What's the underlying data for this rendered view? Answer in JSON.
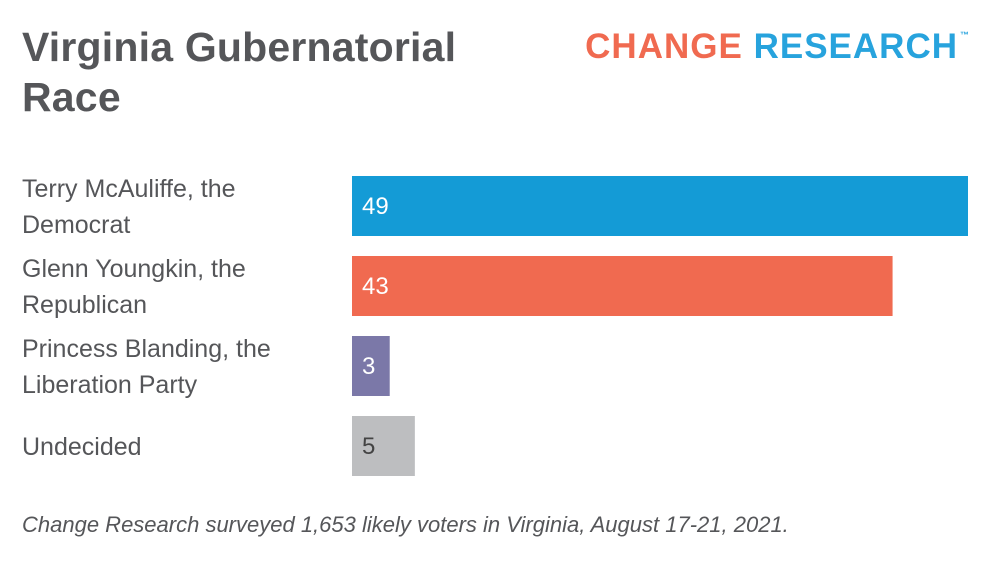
{
  "title": "Virginia Gubernatorial Race",
  "logo": {
    "word1": "CHANGE",
    "word2": "RESEARCH",
    "tm": "™",
    "word1_color": "#f06a50",
    "word2_color": "#27a3dd"
  },
  "note": "Change Research surveyed 1,653 likely voters in Virginia, August 17-21, 2021.",
  "chart_data": {
    "type": "bar",
    "orientation": "horizontal",
    "categories": [
      [
        "Terry McAuliffe, the",
        "Democrat"
      ],
      [
        "Glenn Youngkin, the",
        "Republican"
      ],
      [
        "Princess Blanding, the",
        "Liberation Party"
      ],
      [
        "Undecided"
      ]
    ],
    "values": [
      49,
      43,
      3,
      5
    ],
    "colors": [
      "#149bd6",
      "#f06a50",
      "#7b78a8",
      "#bdbec0"
    ],
    "label_colors": [
      "#ffffff",
      "#ffffff",
      "#ffffff",
      "#444444"
    ],
    "xlim": [
      0,
      49
    ],
    "grid": false,
    "legend": false
  }
}
